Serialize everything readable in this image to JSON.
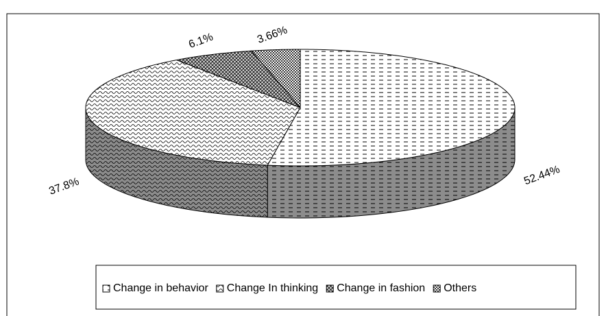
{
  "chart_data": {
    "type": "pie3d",
    "categories": [
      "Change in behavior",
      "Change In thinking",
      "Change in fashion",
      "Others"
    ],
    "values": [
      52.44,
      37.8,
      6.1,
      3.66
    ],
    "value_labels": [
      "52.44%",
      "37.8%",
      "6.1%",
      "3.66%"
    ],
    "colors": [
      "#ffffff",
      "#ffffff",
      "#d8d8d8",
      "#303030"
    ],
    "legend": "bottom"
  }
}
